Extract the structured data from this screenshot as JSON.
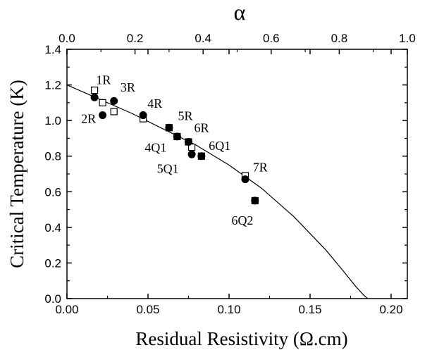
{
  "chart_data": {
    "type": "scatter",
    "xlabel": "Residual Resistivity (Ω.cm)",
    "ylabel": "Critical Temperature (K)",
    "x2label": "α",
    "xlim": [
      0.0,
      0.21
    ],
    "ylim": [
      0.0,
      1.4
    ],
    "x2lim": [
      0.0,
      1.0
    ],
    "x_ticks": [
      "0.00",
      "0.05",
      "0.10",
      "0.15",
      "0.20"
    ],
    "y_ticks": [
      "0.0",
      "0.2",
      "0.4",
      "0.6",
      "0.8",
      "1.0",
      "1.2",
      "1.4"
    ],
    "x2_ticks": [
      "0.0",
      "0.2",
      "0.4",
      "0.6",
      "0.8",
      "1.0"
    ],
    "grid": false,
    "series": [
      {
        "marker": "open-square",
        "points": [
          {
            "x": 0.017,
            "y": 1.17
          },
          {
            "x": 0.022,
            "y": 1.1
          },
          {
            "x": 0.029,
            "y": 1.05
          },
          {
            "x": 0.047,
            "y": 1.01
          },
          {
            "x": 0.063,
            "y": 0.96
          },
          {
            "x": 0.068,
            "y": 0.91
          },
          {
            "x": 0.075,
            "y": 0.88
          },
          {
            "x": 0.077,
            "y": 0.85
          },
          {
            "x": 0.083,
            "y": 0.8
          },
          {
            "x": 0.11,
            "y": 0.69
          },
          {
            "x": 0.116,
            "y": 0.55
          }
        ]
      },
      {
        "marker": "filled-circle",
        "points": [
          {
            "x": 0.017,
            "y": 1.13
          },
          {
            "x": 0.022,
            "y": 1.03
          },
          {
            "x": 0.029,
            "y": 1.11
          },
          {
            "x": 0.047,
            "y": 1.03
          },
          {
            "x": 0.063,
            "y": 0.96
          },
          {
            "x": 0.068,
            "y": 0.91
          },
          {
            "x": 0.075,
            "y": 0.88
          },
          {
            "x": 0.077,
            "y": 0.81
          },
          {
            "x": 0.083,
            "y": 0.8
          },
          {
            "x": 0.11,
            "y": 0.67
          },
          {
            "x": 0.116,
            "y": 0.55
          }
        ]
      }
    ],
    "fit_curve": {
      "style": "solid-line",
      "x": [
        0.0,
        0.02,
        0.04,
        0.06,
        0.08,
        0.1,
        0.12,
        0.14,
        0.16,
        0.17,
        0.178,
        0.183,
        0.1855
      ],
      "y": [
        1.2,
        1.12,
        1.04,
        0.95,
        0.86,
        0.75,
        0.62,
        0.46,
        0.27,
        0.16,
        0.07,
        0.02,
        0.0
      ]
    },
    "annotations": [
      {
        "text": "1R",
        "x": 0.018,
        "y": 1.205
      },
      {
        "text": "3R",
        "x": 0.033,
        "y": 1.162
      },
      {
        "text": "2R",
        "x": 0.0088,
        "y": 0.987
      },
      {
        "text": "4R",
        "x": 0.0497,
        "y": 1.072
      },
      {
        "text": "5R",
        "x": 0.0685,
        "y": 1.003
      },
      {
        "text": "6R",
        "x": 0.0785,
        "y": 0.935
      },
      {
        "text": "4Q1",
        "x": 0.048,
        "y": 0.824
      },
      {
        "text": "6Q1",
        "x": 0.0875,
        "y": 0.834
      },
      {
        "text": "5Q1",
        "x": 0.0555,
        "y": 0.706
      },
      {
        "text": "7R",
        "x": 0.1147,
        "y": 0.714
      },
      {
        "text": "6Q2",
        "x": 0.1015,
        "y": 0.416
      }
    ]
  }
}
